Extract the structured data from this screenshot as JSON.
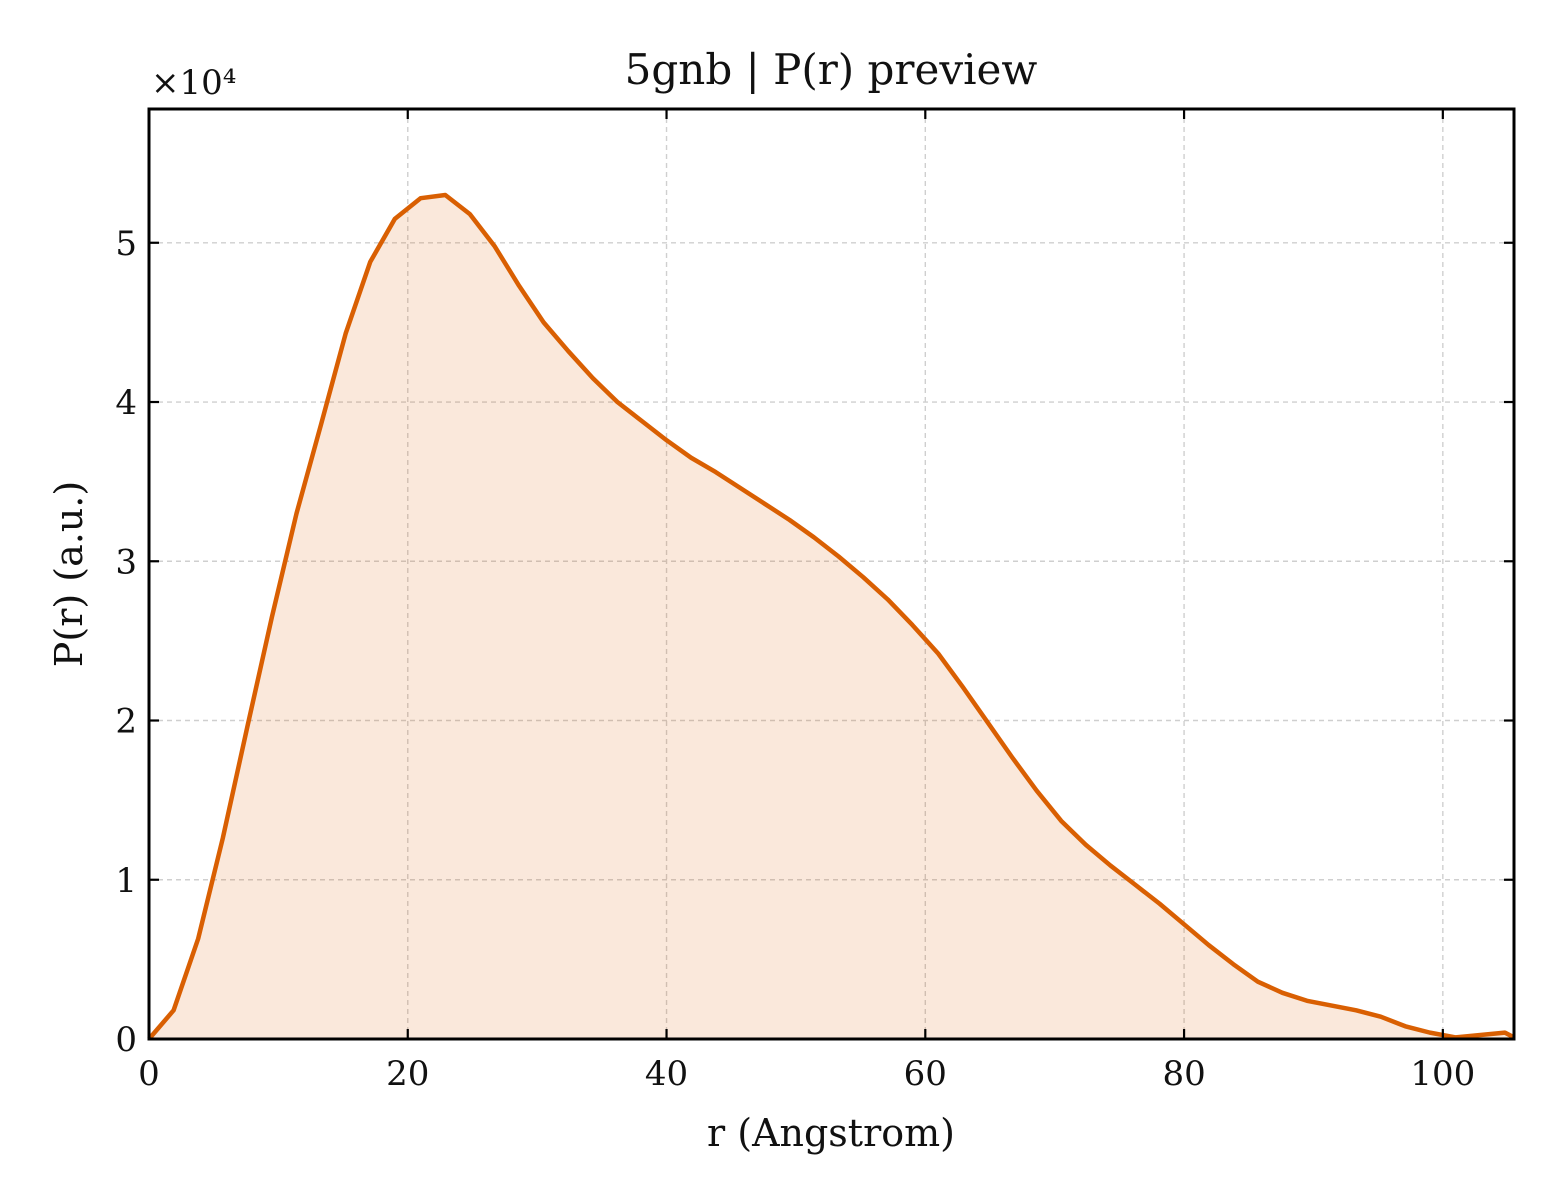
{
  "chart_data": {
    "type": "area",
    "title": "5gnb | P(r) preview",
    "xlabel": "r (Angstrom)",
    "ylabel": "P(r) (a.u.)",
    "y_scale_label": "×10⁴",
    "y_scale_factor": 10000,
    "xlim": [
      0,
      105.5
    ],
    "ylim": [
      0,
      58400
    ],
    "x_ticks": [
      0,
      20,
      40,
      60,
      80,
      100
    ],
    "x_tick_labels": [
      "0",
      "20",
      "40",
      "60",
      "80",
      "100"
    ],
    "y_ticks": [
      0,
      10000,
      20000,
      30000,
      40000,
      50000
    ],
    "y_tick_labels": [
      "0",
      "1",
      "2",
      "3",
      "4",
      "5"
    ],
    "grid": true,
    "colors": {
      "line": "#d95f02",
      "fill": "#d95f02",
      "fill_opacity": 0.14
    },
    "series": [
      {
        "x": [
          0,
          1.9,
          3.8,
          5.7,
          7.6,
          9.5,
          11.4,
          13.3,
          15.2,
          17.1,
          19.0,
          21.0,
          22.9,
          24.8,
          26.7,
          28.6,
          30.5,
          32.4,
          34.3,
          36.2,
          38.1,
          40.0,
          41.9,
          43.8,
          45.7,
          47.6,
          49.5,
          51.4,
          53.3,
          55.2,
          57.1,
          59.0,
          61.0,
          62.9,
          64.8,
          66.7,
          68.6,
          70.5,
          72.4,
          74.3,
          76.2,
          78.1,
          80.0,
          81.9,
          83.8,
          85.7,
          87.6,
          89.5,
          91.4,
          93.3,
          95.2,
          97.1,
          99.0,
          101.0,
          102.9,
          104.8,
          105.5
        ],
        "values": [
          0,
          1800,
          6300,
          12600,
          19600,
          26500,
          33000,
          38600,
          44300,
          48800,
          51500,
          52800,
          53000,
          51800,
          49800,
          47300,
          45000,
          43200,
          41500,
          40000,
          38800,
          37600,
          36500,
          35600,
          34600,
          33600,
          32600,
          31500,
          30300,
          29000,
          27600,
          26000,
          24200,
          22100,
          19900,
          17700,
          15600,
          13700,
          12200,
          10900,
          9700,
          8500,
          7200,
          5900,
          4700,
          3600,
          2900,
          2400,
          2100,
          1800,
          1400,
          800,
          400,
          100,
          250,
          400,
          100
        ]
      }
    ]
  }
}
